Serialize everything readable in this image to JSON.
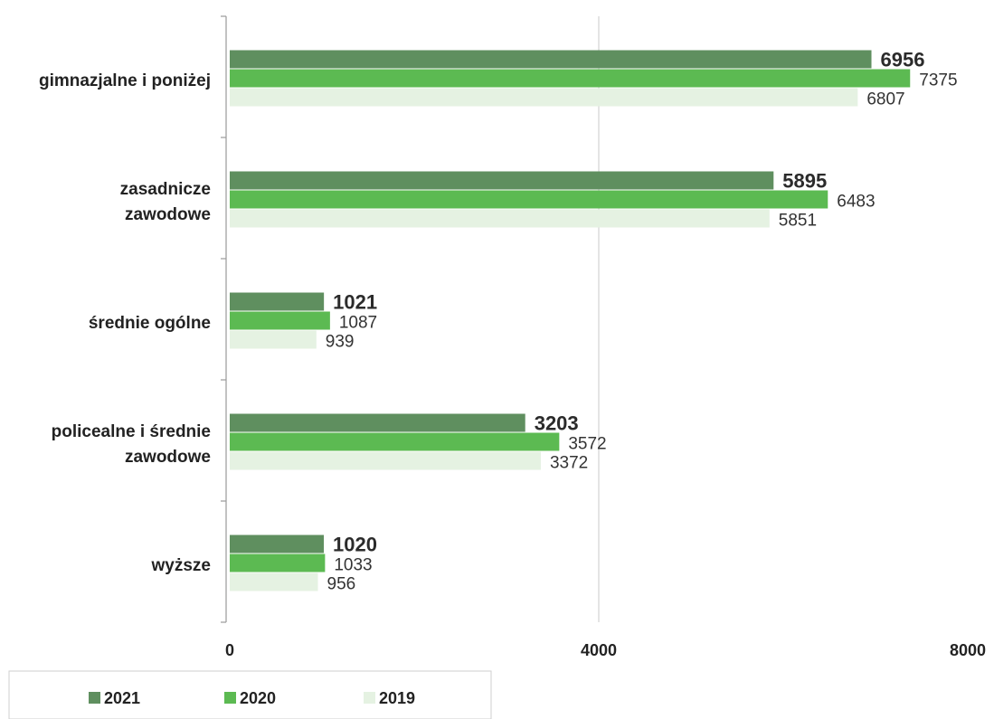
{
  "chart_data": {
    "type": "bar",
    "orientation": "horizontal",
    "categories": [
      [
        "gimnazjalne i poniżej"
      ],
      [
        "zasadnicze",
        "zawodowe"
      ],
      [
        "średnie ogólne"
      ],
      [
        "policealne i średnie",
        "zawodowe"
      ],
      [
        "wyższe"
      ]
    ],
    "series": [
      {
        "name": "2021",
        "values": [
          6956,
          5895,
          1021,
          3203,
          1020
        ],
        "color": "#5f8f5f",
        "labels_bold": true
      },
      {
        "name": "2020",
        "values": [
          7375,
          6483,
          1087,
          3572,
          1033
        ],
        "color": "#5cba52",
        "labels_bold": false
      },
      {
        "name": "2019",
        "values": [
          6807,
          5851,
          939,
          3372,
          956
        ],
        "color": "#e5f2e2",
        "labels_bold": false
      }
    ],
    "xlim": [
      0,
      8000
    ],
    "x_ticks": [
      "0",
      "4000",
      "8000"
    ],
    "grid": "vertical at 4000",
    "legend_position": "bottom-left",
    "title": "",
    "xlabel": "",
    "ylabel": ""
  }
}
